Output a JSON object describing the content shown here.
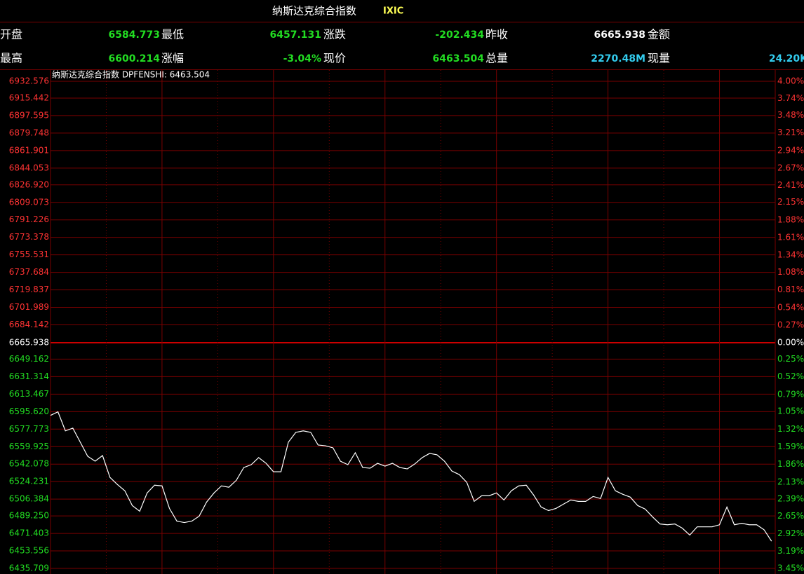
{
  "header": {
    "title": "纳斯达克综合指数",
    "code": "IXIC"
  },
  "quote": {
    "rows": [
      [
        {
          "label": "开盘",
          "value": "6584.773",
          "color": "#22dd22"
        },
        {
          "label": "最低",
          "value": "6457.131",
          "color": "#22dd22"
        },
        {
          "label": "涨跌",
          "value": "-202.434",
          "color": "#22dd22"
        },
        {
          "label": "昨收",
          "value": "6665.938",
          "color": "#ffffff"
        },
        {
          "label": "金额",
          "value": "-",
          "color": "#ffffff"
        }
      ],
      [
        {
          "label": "最高",
          "value": "6600.214",
          "color": "#22dd22"
        },
        {
          "label": "涨幅",
          "value": "-3.04%",
          "color": "#22dd22"
        },
        {
          "label": "现价",
          "value": "6463.504",
          "color": "#22dd22"
        },
        {
          "label": "总量",
          "value": "2270.48M",
          "color": "#33ccee"
        },
        {
          "label": "现量",
          "value": "24.20K",
          "color": "#33ccee"
        }
      ]
    ]
  },
  "chart_data": {
    "type": "line",
    "legend_text": "纳斯达克综合指数 DPFENSHI: 6463.504",
    "up_color": "#ff3333",
    "down_color": "#22dd22",
    "flat_color": "#ffffff",
    "grid_color": "#7a0000",
    "zero_color": "#cc0000",
    "xlim": [
      0,
      390
    ],
    "xticks": [
      30,
      60,
      90,
      120,
      150,
      180,
      210,
      240,
      270,
      300,
      330,
      360
    ],
    "ylim": [
      6435.709,
      6932.576
    ],
    "yticks": [
      {
        "value": 6932.576,
        "label": "6932.576"
      },
      {
        "value": 6915.442,
        "label": "6915.442"
      },
      {
        "value": 6897.595,
        "label": "6897.595"
      },
      {
        "value": 6879.748,
        "label": "6879.748"
      },
      {
        "value": 6861.901,
        "label": "6861.901"
      },
      {
        "value": 6844.053,
        "label": "6844.053"
      },
      {
        "value": 6826.92,
        "label": "6826.920"
      },
      {
        "value": 6809.073,
        "label": "6809.073"
      },
      {
        "value": 6791.226,
        "label": "6791.226"
      },
      {
        "value": 6773.378,
        "label": "6773.378"
      },
      {
        "value": 6755.531,
        "label": "6755.531"
      },
      {
        "value": 6737.684,
        "label": "6737.684"
      },
      {
        "value": 6719.837,
        "label": "6719.837"
      },
      {
        "value": 6701.989,
        "label": "6701.989"
      },
      {
        "value": 6684.142,
        "label": "6684.142"
      },
      {
        "value": 6665.938,
        "label": "6665.938"
      },
      {
        "value": 6649.162,
        "label": "6649.162"
      },
      {
        "value": 6631.314,
        "label": "6631.314"
      },
      {
        "value": 6613.467,
        "label": "6613.467"
      },
      {
        "value": 6595.62,
        "label": "6595.620"
      },
      {
        "value": 6577.773,
        "label": "6577.773"
      },
      {
        "value": 6559.925,
        "label": "6559.925"
      },
      {
        "value": 6542.078,
        "label": "6542.078"
      },
      {
        "value": 6524.231,
        "label": "6524.231"
      },
      {
        "value": 6506.384,
        "label": "6506.384"
      },
      {
        "value": 6489.25,
        "label": "6489.250"
      },
      {
        "value": 6471.403,
        "label": "6471.403"
      },
      {
        "value": 6453.556,
        "label": "6453.556"
      },
      {
        "value": 6435.709,
        "label": "6435.709"
      }
    ],
    "y2lim": [
      -3.45,
      4.0
    ],
    "y2ticks": [
      {
        "value": 4.0,
        "label": "4.00%"
      },
      {
        "value": 3.74,
        "label": "3.74%"
      },
      {
        "value": 3.48,
        "label": "3.48%"
      },
      {
        "value": 3.21,
        "label": "3.21%"
      },
      {
        "value": 2.94,
        "label": "2.94%"
      },
      {
        "value": 2.67,
        "label": "2.67%"
      },
      {
        "value": 2.41,
        "label": "2.41%"
      },
      {
        "value": 2.15,
        "label": "2.15%"
      },
      {
        "value": 1.88,
        "label": "1.88%"
      },
      {
        "value": 1.61,
        "label": "1.61%"
      },
      {
        "value": 1.34,
        "label": "1.34%"
      },
      {
        "value": 1.08,
        "label": "1.08%"
      },
      {
        "value": 0.81,
        "label": "0.81%"
      },
      {
        "value": 0.54,
        "label": "0.54%"
      },
      {
        "value": 0.27,
        "label": "0.27%"
      },
      {
        "value": 0,
        "label": "0.00%"
      },
      {
        "value": -0.25,
        "label": "0.25%"
      },
      {
        "value": -0.52,
        "label": "0.52%"
      },
      {
        "value": -0.79,
        "label": "0.79%"
      },
      {
        "value": -1.05,
        "label": "1.05%"
      },
      {
        "value": -1.32,
        "label": "1.32%"
      },
      {
        "value": -1.59,
        "label": "1.59%"
      },
      {
        "value": -1.86,
        "label": "1.86%"
      },
      {
        "value": -2.13,
        "label": "2.13%"
      },
      {
        "value": -2.39,
        "label": "2.39%"
      },
      {
        "value": -2.65,
        "label": "2.65%"
      },
      {
        "value": -2.92,
        "label": "2.92%"
      },
      {
        "value": -3.19,
        "label": "3.19%"
      },
      {
        "value": -3.45,
        "label": "3.45%"
      }
    ],
    "x": [
      0,
      4,
      8,
      12,
      16,
      20,
      24,
      28,
      32,
      36,
      40,
      44,
      48,
      52,
      56,
      60,
      64,
      68,
      72,
      76,
      80,
      84,
      88,
      92,
      96,
      100,
      104,
      108,
      112,
      116,
      120,
      124,
      128,
      132,
      136,
      140,
      144,
      148,
      152,
      156,
      160,
      164,
      168,
      172,
      176,
      180,
      184,
      188,
      192,
      196,
      200,
      204,
      208,
      212,
      216,
      220,
      224,
      228,
      232,
      236,
      240,
      244,
      248,
      252,
      256,
      260,
      264,
      268,
      272,
      276,
      280,
      284,
      288,
      292,
      296,
      300,
      304,
      308,
      312,
      316,
      320,
      324,
      328,
      332,
      336,
      340,
      344,
      348,
      352,
      356,
      360,
      364,
      368,
      372,
      376,
      380,
      384,
      388
    ],
    "series": [
      {
        "name": "DPFENSHI",
        "color": "#ffffff",
        "values": [
          6591.8,
          6595.4,
          6576.0,
          6578.8,
          6564.5,
          6550.1,
          6545.1,
          6550.8,
          6528.5,
          6521.3,
          6514.9,
          6499.8,
          6494.0,
          6512.7,
          6520.6,
          6519.9,
          6496.9,
          6483.9,
          6482.5,
          6483.9,
          6489.0,
          6503.4,
          6512.7,
          6519.9,
          6518.5,
          6525.6,
          6538.6,
          6541.5,
          6548.7,
          6542.9,
          6534.3,
          6534.3,
          6564.5,
          6574.5,
          6576.0,
          6574.5,
          6561.6,
          6560.8,
          6558.7,
          6545.1,
          6541.5,
          6553.7,
          6538.6,
          6537.9,
          6542.9,
          6540.0,
          6542.9,
          6538.6,
          6537.2,
          6542.2,
          6548.7,
          6553.0,
          6551.6,
          6545.1,
          6535.0,
          6531.4,
          6523.5,
          6504.1,
          6509.8,
          6509.8,
          6512.7,
          6505.5,
          6514.9,
          6519.9,
          6520.6,
          6510.5,
          6498.3,
          6494.7,
          6496.9,
          6501.2,
          6505.5,
          6504.1,
          6504.1,
          6509.1,
          6507.0,
          6528.5,
          6514.9,
          6511.3,
          6508.4,
          6499.8,
          6496.2,
          6488.2,
          6481.0,
          6480.2,
          6481.0,
          6476.7,
          6469.7,
          6478.1,
          6478.1,
          6478.1,
          6480.2,
          6498.3,
          6480.2,
          6481.7,
          6480.2,
          6480.2,
          6475.1,
          6463.504
        ]
      }
    ]
  }
}
